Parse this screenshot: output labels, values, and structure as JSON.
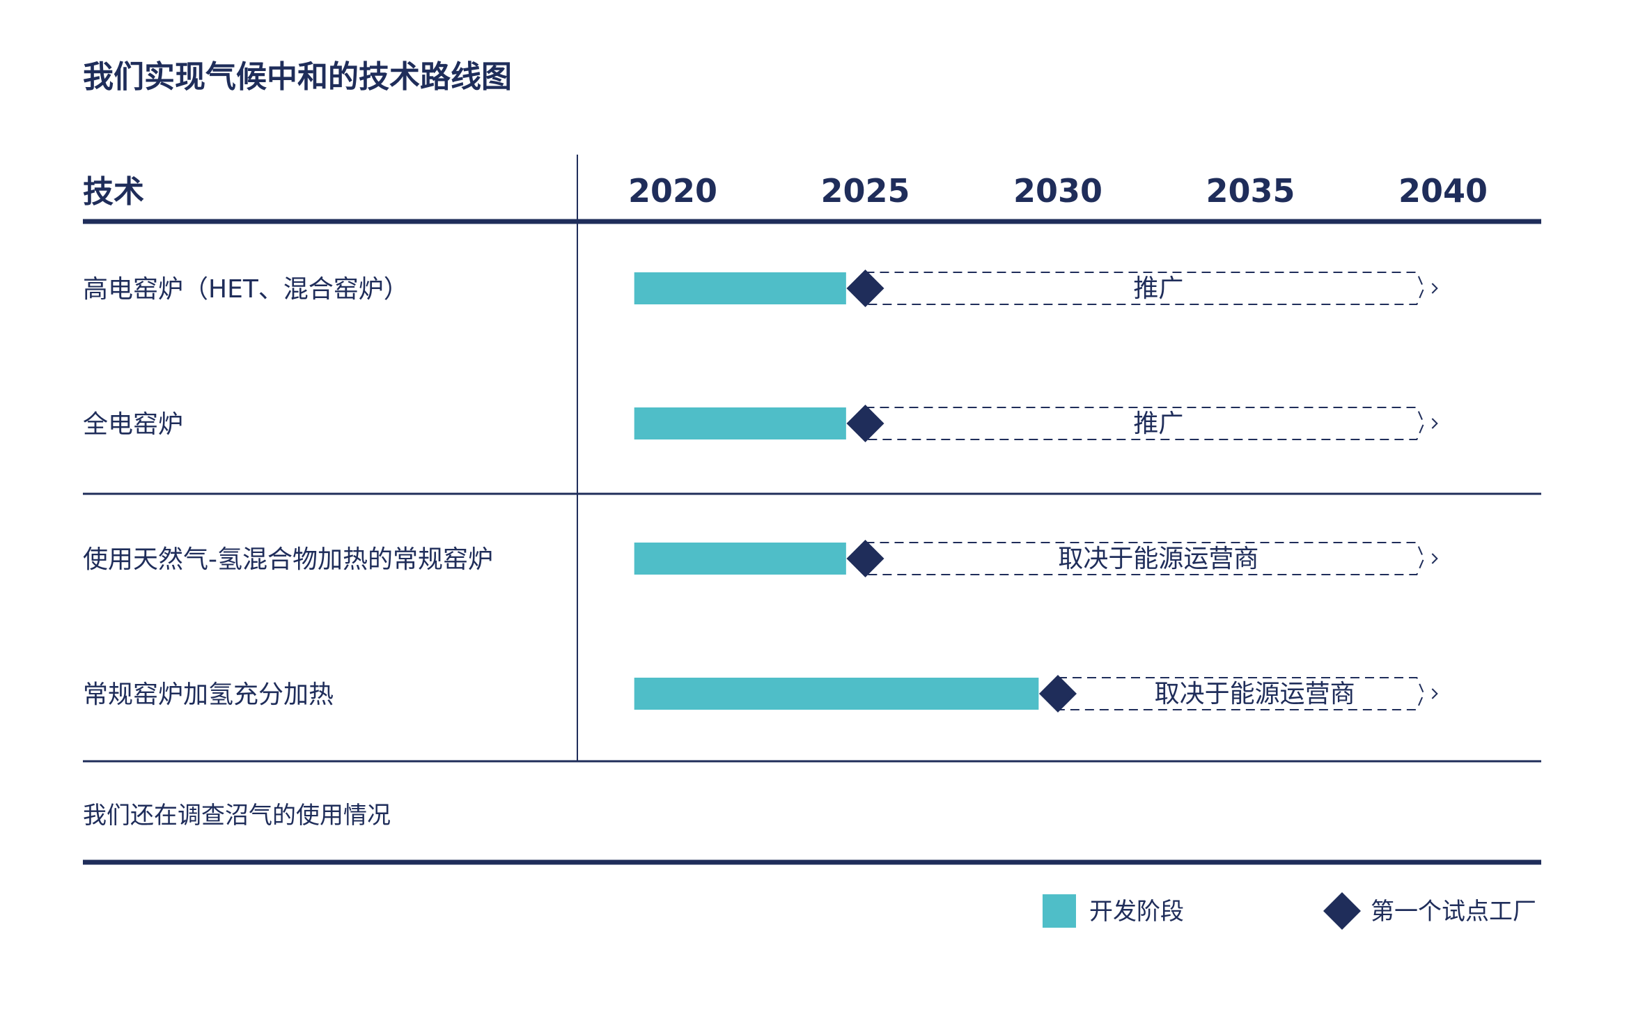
{
  "title": "我们实现气候中和的技术路线图",
  "colors": {
    "navy": "#1f2d5a",
    "teal": "#4fbec8"
  },
  "chart_data": {
    "type": "gantt",
    "column_header": "技术",
    "years": [
      2020,
      2025,
      2030,
      2035,
      2040
    ],
    "rows": [
      {
        "label": "高电窑炉（HET、混合窑炉）",
        "dev_start": 2019,
        "dev_end": 2024.5,
        "pilot": 2025,
        "rollout_label": "推广",
        "rollout_end": 2039.5
      },
      {
        "label": "全电窑炉",
        "dev_start": 2019,
        "dev_end": 2024.5,
        "pilot": 2025,
        "rollout_label": "推广",
        "rollout_end": 2039.5
      },
      {
        "label": "使用天然气-氢混合物加热的常规窑炉",
        "dev_start": 2019,
        "dev_end": 2024.5,
        "pilot": 2025,
        "rollout_label": "取决于能源运营商",
        "rollout_end": 2039.5
      },
      {
        "label": "常规窑炉加氢充分加热",
        "dev_start": 2019,
        "dev_end": 2029.5,
        "pilot": 2030,
        "rollout_label": "取决于能源运营商",
        "rollout_end": 2039.5
      }
    ],
    "footer_note": "我们还在调查沼气的使用情况",
    "legend": [
      {
        "label": "开发阶段",
        "shape": "square",
        "color": "#4fbec8"
      },
      {
        "label": "第一个试点工厂",
        "shape": "diamond",
        "color": "#1f2d5a"
      }
    ]
  }
}
